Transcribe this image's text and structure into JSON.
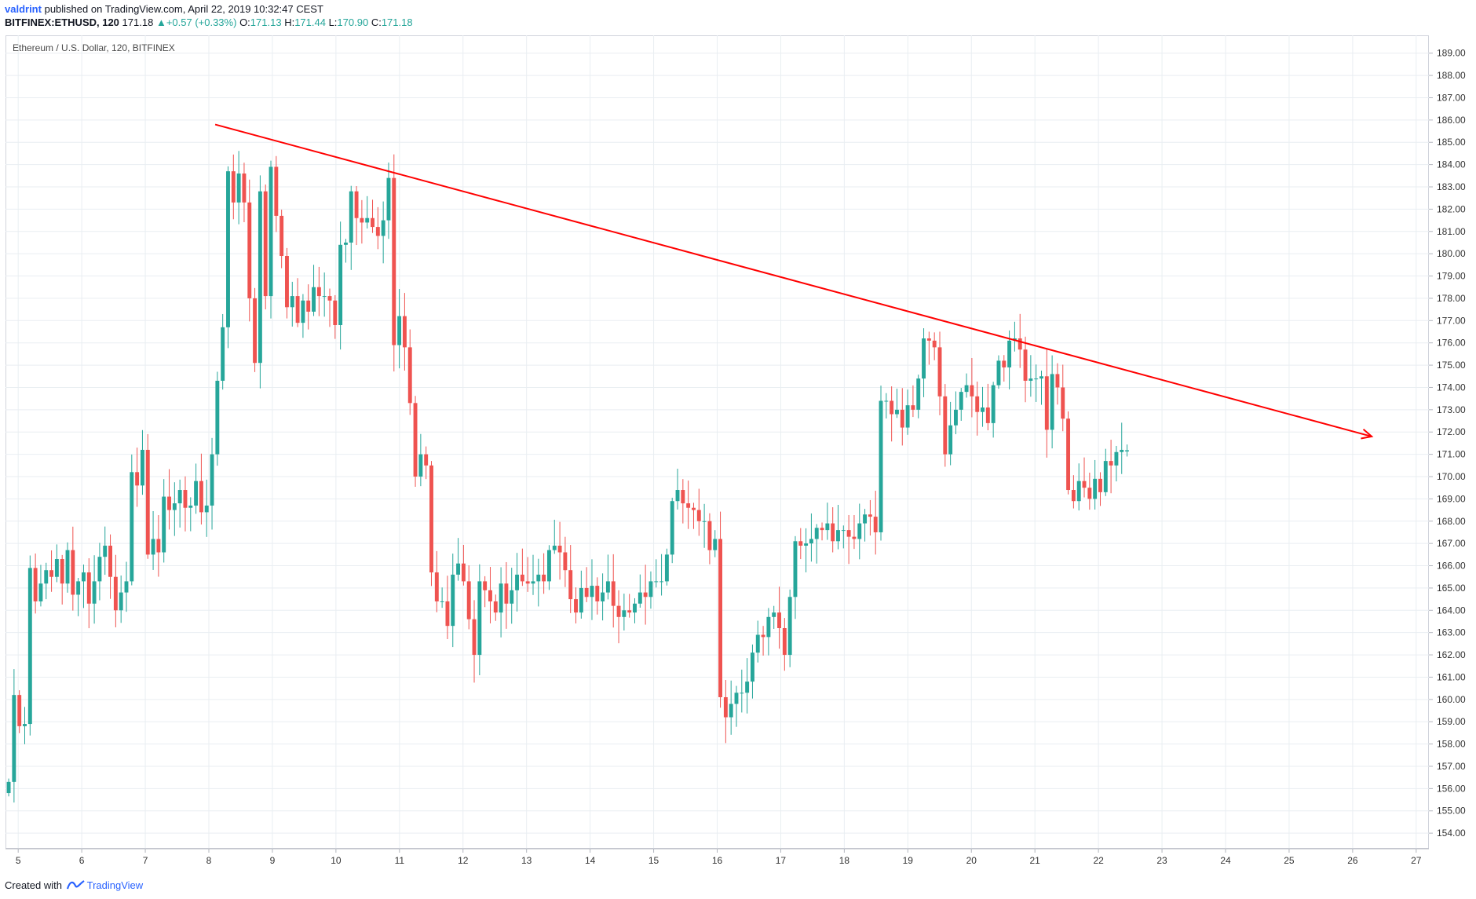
{
  "header": {
    "author": "valdrint",
    "published_text": "published on TradingView.com, April 22, 2019 10:32:47 CEST",
    "symbol_interval": "BITFINEX:ETHUSD, 120",
    "last_price": "171.18",
    "change_arrow": "▲",
    "change": "+0.57 (+0.33%)",
    "o_label": "O:",
    "o_value": "171.13",
    "h_label": "H:",
    "h_value": "171.44",
    "l_label": "L:",
    "l_value": "170.90",
    "c_label": "C:",
    "c_value": "171.18"
  },
  "chart_title": "Ethereum / U.S. Dollar, 120, BITFINEX",
  "footer": {
    "created_with": "Created with",
    "brand": "TradingView"
  },
  "colors": {
    "up": "#26a69a",
    "down": "#ef5350",
    "trendline": "#ff0000",
    "grid": "#e9eef2",
    "axis_text": "#333333"
  },
  "chart_data": {
    "type": "candlestick",
    "title": "Ethereum / U.S. Dollar, 120, BITFINEX",
    "xlabel": "",
    "ylabel": "",
    "ylim": [
      153.3,
      189.8
    ],
    "xlim": [
      4.8,
      27.2
    ],
    "grid": true,
    "x_ticks": [
      5,
      6,
      7,
      8,
      9,
      10,
      11,
      12,
      13,
      14,
      15,
      16,
      17,
      18,
      19,
      20,
      21,
      22,
      23,
      24,
      25,
      26,
      27
    ],
    "y_ticks": [
      154,
      155,
      156,
      157,
      158,
      159,
      160,
      161,
      162,
      163,
      164,
      165,
      166,
      167,
      168,
      169,
      170,
      171,
      172,
      173,
      174,
      175,
      176,
      177,
      178,
      179,
      180,
      181,
      182,
      183,
      184,
      185,
      186,
      187,
      188,
      189
    ],
    "candles_close": [
      156.3,
      160.2,
      158.8,
      158.9,
      165.9,
      164.4,
      165.2,
      165.8,
      165.5,
      166.3,
      165.2,
      166.7,
      164.7,
      165.3,
      165.7,
      164.3,
      165.3,
      166.4,
      166.9,
      165.5,
      164.0,
      164.8,
      165.3,
      170.2,
      169.6,
      171.2,
      166.5,
      167.2,
      166.6,
      169.1,
      168.5,
      168.8,
      169.4,
      168.6,
      168.7,
      169.8,
      168.4,
      168.7,
      171.0,
      174.3,
      176.7,
      183.7,
      182.3,
      183.6,
      182.3,
      178.0,
      175.1,
      182.8,
      178.1,
      183.9,
      181.7,
      179.9,
      177.6,
      178.1,
      176.9,
      177.9,
      177.4,
      178.5,
      178.1,
      178.1,
      177.9,
      176.8,
      180.4,
      180.5,
      182.8,
      181.6,
      181.4,
      181.6,
      181.2,
      180.8,
      181.5,
      183.4,
      175.9,
      177.2,
      175.8,
      173.3,
      170.0,
      171.0,
      170.5,
      165.7,
      164.4,
      164.4,
      163.3,
      165.6,
      166.1,
      165.3,
      163.6,
      162.0,
      165.3,
      164.9,
      164.4,
      163.9,
      165.2,
      164.3,
      164.9,
      165.6,
      165.3,
      165.2,
      165.3,
      165.6,
      165.3,
      166.7,
      166.9,
      166.6,
      165.8,
      164.5,
      163.9,
      165.0,
      164.6,
      165.1,
      164.4,
      164.8,
      165.3,
      164.2,
      163.7,
      164.0,
      163.9,
      164.3,
      164.8,
      164.6,
      165.3,
      165.3,
      165.3,
      166.5,
      168.9,
      169.4,
      168.8,
      168.6,
      168.5,
      168.0,
      168.0,
      166.7,
      167.2,
      160.1,
      159.2,
      159.8,
      160.3,
      160.3,
      160.8,
      162.1,
      162.9,
      162.8,
      163.7,
      163.9,
      163.2,
      162.0,
      164.6,
      167.1,
      166.9,
      167.0,
      167.2,
      167.7,
      167.6,
      167.9,
      167.1,
      167.6,
      167.6,
      167.3,
      167.2,
      167.9,
      168.3,
      168.2,
      167.5,
      173.4,
      173.4,
      172.8,
      173.0,
      172.2,
      173.2,
      173.0,
      174.4,
      176.2,
      176.1,
      175.8,
      173.6,
      171.0,
      172.3,
      173.0,
      173.8,
      174.1,
      173.6,
      172.9,
      173.1,
      172.4,
      174.1,
      175.2,
      174.9,
      176.1,
      176.2,
      175.7,
      174.3,
      174.4,
      174.4,
      174.5,
      172.1,
      174.6,
      174.0,
      172.6,
      169.4,
      168.9,
      169.8,
      169.5,
      169.0,
      169.9,
      169.3,
      170.7,
      170.5,
      171.1,
      171.2,
      171.18
    ],
    "last_candle": {
      "open": 171.13,
      "high": 171.44,
      "low": 170.9,
      "close": 171.18
    },
    "trendline": {
      "from": {
        "x": 8.1,
        "y": 185.8
      },
      "to": {
        "x": 26.3,
        "y": 171.8
      }
    }
  }
}
